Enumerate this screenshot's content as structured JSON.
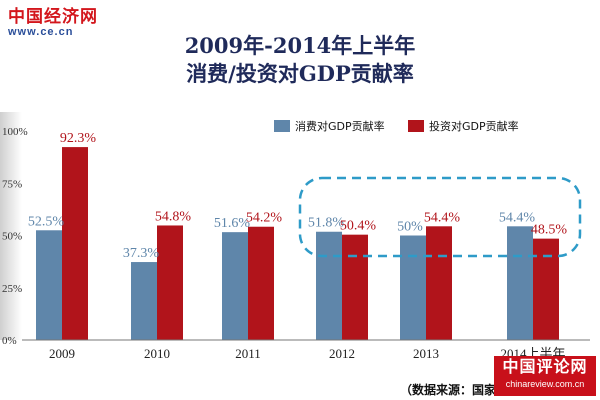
{
  "header": {
    "logo_text": "中国经济网",
    "logo_url": "www.ce.cn",
    "title_line1": "2009年-2014年上半年",
    "title_line2": "消费/投资对GDP贡献率"
  },
  "footer": {
    "source": "（数据来源：国家统计局）",
    "watermark_main": "中国评论网",
    "watermark_sub": "chinareview.com.cn"
  },
  "colors": {
    "consumption": "#5f86aa",
    "investment": "#b1141b",
    "highlight": "#2e9bc8",
    "title": "#1f2a5a"
  },
  "chart_data": {
    "type": "bar",
    "categories": [
      "2009",
      "2010",
      "2011",
      "2012",
      "2013",
      "2014上半年"
    ],
    "series": [
      {
        "name": "消费对GDP贡献率",
        "values": [
          52.5,
          37.3,
          51.6,
          51.8,
          50,
          54.4
        ],
        "labels": [
          "52.5%",
          "37.3%",
          "51.6%",
          "51.8%",
          "50%",
          "54.4%"
        ]
      },
      {
        "name": "投资对GDP贡献率",
        "values": [
          92.3,
          54.8,
          54.2,
          50.4,
          54.4,
          48.5
        ],
        "labels": [
          "92.3%",
          "54.8%",
          "54.2%",
          "50.4%",
          "54.4%",
          "48.5%"
        ]
      }
    ],
    "ylim": [
      0,
      100
    ],
    "yticks": [
      0,
      25,
      50,
      75,
      100
    ],
    "ytick_labels": [
      "0%",
      "25%",
      "50%",
      "75%",
      "100%"
    ],
    "legend_position": "top-right",
    "highlight_categories": [
      "2012",
      "2013",
      "2014上半年"
    ],
    "grid": false
  }
}
